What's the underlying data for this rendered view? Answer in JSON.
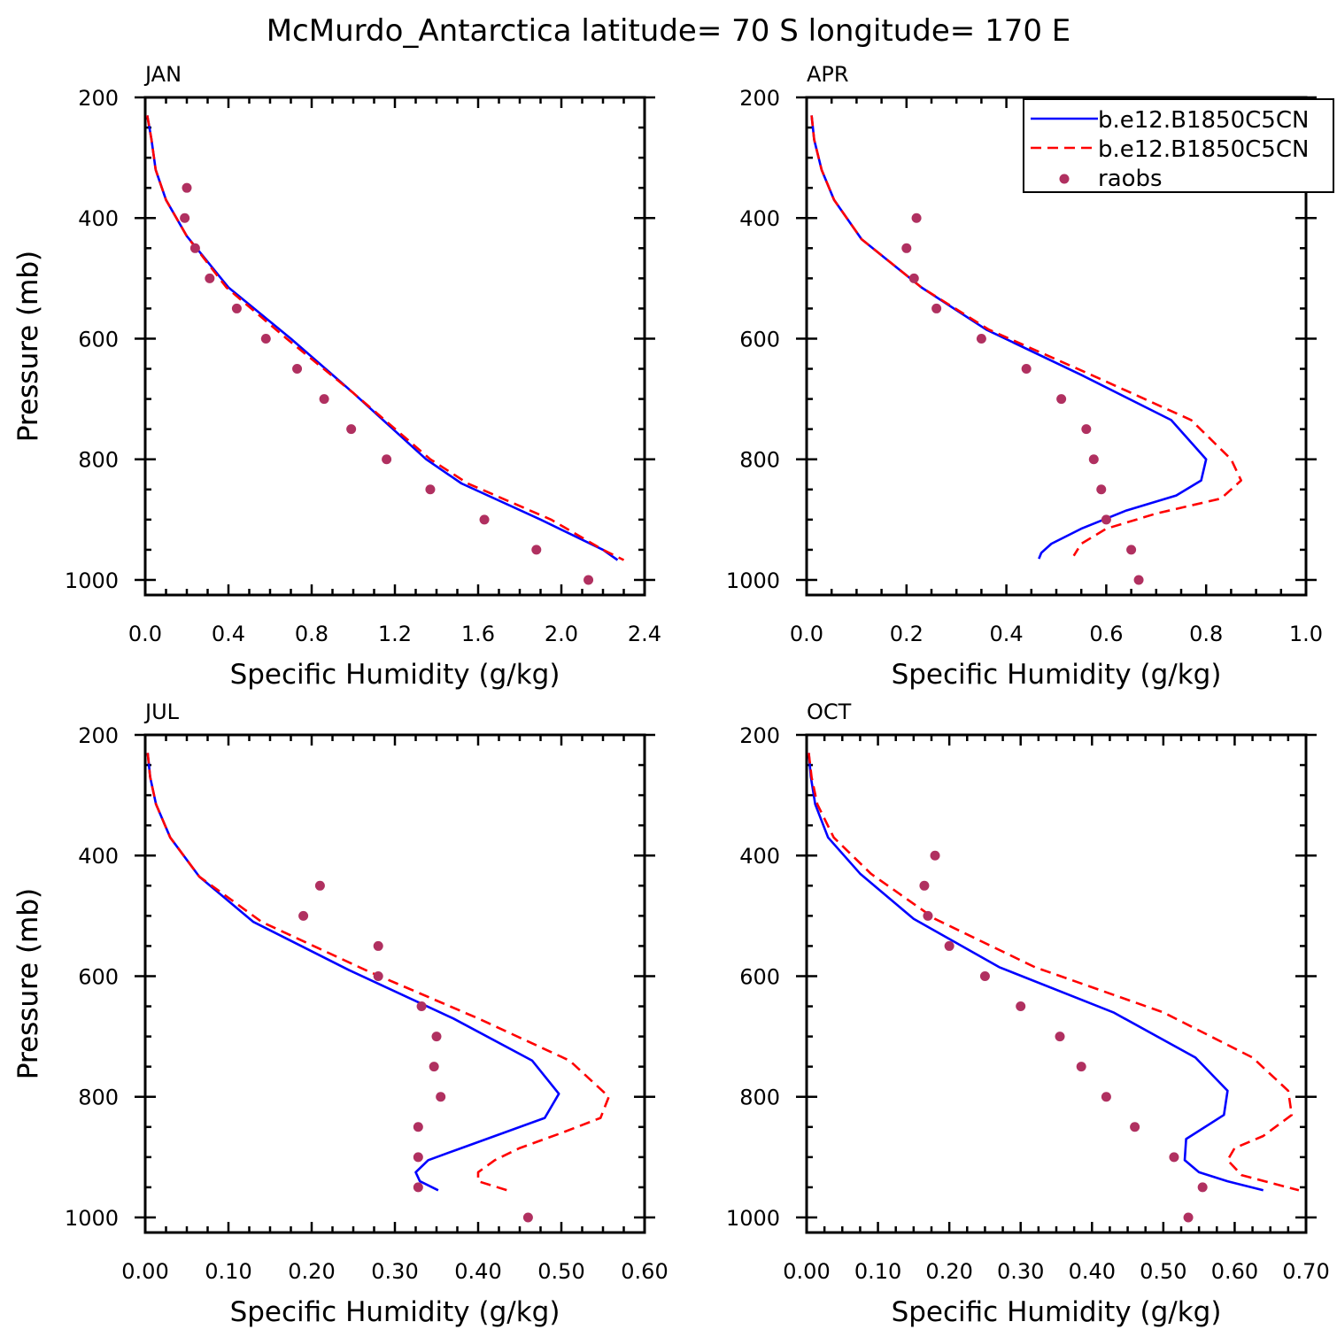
{
  "title": "McMurdo_Antarctica  latitude= 70 S longitude= 170 E",
  "legend": {
    "entries": [
      {
        "label": "b.e12.B1850C5CN",
        "color": "#0000ff",
        "style": "solid"
      },
      {
        "label": "b.e12.B1850C5CN",
        "color": "#ff0000",
        "style": "dashed"
      },
      {
        "label": "raobs",
        "color": "#b03060",
        "style": "marker"
      }
    ]
  },
  "chart_data": [
    {
      "type": "line",
      "title": "JAN",
      "xlabel": "Specific Humidity (g/kg)",
      "ylabel": "Pressure (mb)",
      "xlim": [
        0,
        2.4
      ],
      "ylim": [
        200,
        1025
      ],
      "y_inverted": true,
      "xticks": [
        0.0,
        0.4,
        0.8,
        1.2,
        1.6,
        2.0,
        2.4
      ],
      "xticklabels": [
        "0.0",
        "0.4",
        "0.8",
        "1.2",
        "1.6",
        "2.0",
        "2.4"
      ],
      "yticks": [
        200,
        400,
        600,
        800,
        1000
      ],
      "yticklabels": [
        "200",
        "400",
        "600",
        "800",
        "1000"
      ],
      "series": [
        {
          "name": "b.e12.B1850C5CN",
          "style": "solid",
          "color": "#0000ff",
          "x": [
            0.01,
            0.03,
            0.05,
            0.1,
            0.2,
            0.4,
            0.7,
            1.0,
            1.35,
            1.52,
            1.9,
            2.2,
            2.27
          ],
          "y": [
            230,
            270,
            320,
            370,
            430,
            515,
            600,
            690,
            800,
            840,
            900,
            950,
            967
          ]
        },
        {
          "name": "b.e12.B1850C5CN",
          "style": "dashed",
          "color": "#ff0000",
          "x": [
            0.01,
            0.03,
            0.05,
            0.1,
            0.2,
            0.39,
            0.68,
            1.0,
            1.37,
            1.55,
            1.95,
            2.2,
            2.3
          ],
          "y": [
            230,
            270,
            320,
            370,
            430,
            515,
            600,
            690,
            800,
            840,
            900,
            950,
            967
          ]
        },
        {
          "name": "raobs",
          "style": "marker",
          "color": "#b03060",
          "x": [
            0.2,
            0.19,
            0.24,
            0.31,
            0.44,
            0.58,
            0.73,
            0.86,
            0.99,
            1.16,
            1.37,
            1.63,
            1.88,
            2.13
          ],
          "y": [
            350,
            400,
            450,
            500,
            550,
            600,
            650,
            700,
            750,
            800,
            850,
            900,
            950,
            1000
          ]
        }
      ]
    },
    {
      "type": "line",
      "title": "APR",
      "xlabel": "Specific Humidity (g/kg)",
      "ylabel": "Pressure (mb)",
      "xlim": [
        0,
        1.0
      ],
      "ylim": [
        200,
        1025
      ],
      "y_inverted": true,
      "xticks": [
        0.0,
        0.2,
        0.4,
        0.6,
        0.8,
        1.0
      ],
      "xticklabels": [
        "0.0",
        "0.2",
        "0.4",
        "0.6",
        "0.8",
        "1.0"
      ],
      "yticks": [
        200,
        400,
        600,
        800,
        1000
      ],
      "yticklabels": [
        "200",
        "400",
        "600",
        "800",
        "1000"
      ],
      "series": [
        {
          "name": "b.e12.B1850C5CN",
          "style": "solid",
          "color": "#0000ff",
          "x": [
            0.01,
            0.015,
            0.03,
            0.055,
            0.11,
            0.23,
            0.36,
            0.55,
            0.73,
            0.8,
            0.79,
            0.74,
            0.64,
            0.55,
            0.49,
            0.47,
            0.465
          ],
          "y": [
            230,
            270,
            320,
            370,
            435,
            515,
            585,
            660,
            735,
            800,
            835,
            860,
            885,
            915,
            940,
            955,
            965
          ]
        },
        {
          "name": "b.e12.B1850C5CN",
          "style": "dashed",
          "color": "#ff0000",
          "x": [
            0.01,
            0.015,
            0.03,
            0.055,
            0.11,
            0.23,
            0.365,
            0.57,
            0.77,
            0.85,
            0.87,
            0.83,
            0.7,
            0.6,
            0.55,
            0.535
          ],
          "y": [
            230,
            270,
            320,
            370,
            435,
            515,
            585,
            660,
            735,
            800,
            835,
            865,
            890,
            915,
            940,
            960
          ]
        },
        {
          "name": "raobs",
          "style": "marker",
          "color": "#b03060",
          "x": [
            0.22,
            0.2,
            0.215,
            0.26,
            0.35,
            0.44,
            0.51,
            0.56,
            0.575,
            0.59,
            0.6,
            0.65,
            0.665
          ],
          "y": [
            400,
            450,
            500,
            550,
            600,
            650,
            700,
            750,
            800,
            850,
            900,
            950,
            1000
          ]
        }
      ]
    },
    {
      "type": "line",
      "title": "JUL",
      "xlabel": "Specific Humidity (g/kg)",
      "ylabel": "Pressure (mb)",
      "xlim": [
        0,
        0.6
      ],
      "ylim": [
        200,
        1025
      ],
      "y_inverted": true,
      "xticks": [
        0.0,
        0.1,
        0.2,
        0.3,
        0.4,
        0.5,
        0.6
      ],
      "xticklabels": [
        "0.00",
        "0.10",
        "0.20",
        "0.30",
        "0.40",
        "0.50",
        "0.60"
      ],
      "yticks": [
        200,
        400,
        600,
        800,
        1000
      ],
      "yticklabels": [
        "200",
        "400",
        "600",
        "800",
        "1000"
      ],
      "series": [
        {
          "name": "b.e12.B1850C5CN",
          "style": "solid",
          "color": "#0000ff",
          "x": [
            0.003,
            0.006,
            0.013,
            0.03,
            0.065,
            0.13,
            0.245,
            0.37,
            0.465,
            0.497,
            0.48,
            0.43,
            0.38,
            0.34,
            0.325,
            0.33,
            0.352
          ],
          "y": [
            230,
            270,
            315,
            370,
            435,
            510,
            590,
            670,
            740,
            795,
            835,
            860,
            885,
            905,
            925,
            940,
            955
          ]
        },
        {
          "name": "b.e12.B1850C5CN",
          "style": "dashed",
          "color": "#ff0000",
          "x": [
            0.003,
            0.006,
            0.013,
            0.03,
            0.065,
            0.14,
            0.265,
            0.4,
            0.51,
            0.557,
            0.547,
            0.5,
            0.45,
            0.42,
            0.4,
            0.4,
            0.435
          ],
          "y": [
            230,
            270,
            315,
            370,
            435,
            510,
            590,
            670,
            740,
            800,
            835,
            860,
            885,
            905,
            925,
            940,
            955
          ]
        },
        {
          "name": "raobs",
          "style": "marker",
          "color": "#b03060",
          "x": [
            0.21,
            0.19,
            0.28,
            0.28,
            0.332,
            0.35,
            0.347,
            0.355,
            0.328,
            0.328,
            0.328,
            0.46
          ],
          "y": [
            450,
            500,
            550,
            600,
            650,
            700,
            750,
            800,
            850,
            900,
            950,
            1000
          ]
        }
      ]
    },
    {
      "type": "line",
      "title": "OCT",
      "xlabel": "Specific Humidity (g/kg)",
      "ylabel": "Pressure (mb)",
      "xlim": [
        0,
        0.7
      ],
      "ylim": [
        200,
        1025
      ],
      "y_inverted": true,
      "xticks": [
        0.0,
        0.1,
        0.2,
        0.3,
        0.4,
        0.5,
        0.6,
        0.7
      ],
      "xticklabels": [
        "0.00",
        "0.10",
        "0.20",
        "0.30",
        "0.40",
        "0.50",
        "0.60",
        "0.70"
      ],
      "yticks": [
        200,
        400,
        600,
        800,
        1000
      ],
      "yticklabels": [
        "200",
        "400",
        "600",
        "800",
        "1000"
      ],
      "series": [
        {
          "name": "b.e12.B1850C5CN",
          "style": "solid",
          "color": "#0000ff",
          "x": [
            0.003,
            0.006,
            0.012,
            0.03,
            0.075,
            0.15,
            0.27,
            0.43,
            0.545,
            0.59,
            0.585,
            0.532,
            0.53,
            0.55,
            0.59,
            0.64
          ],
          "y": [
            230,
            270,
            315,
            370,
            430,
            505,
            585,
            660,
            735,
            790,
            830,
            870,
            905,
            925,
            940,
            955
          ]
        },
        {
          "name": "b.e12.B1850C5CN",
          "style": "dashed",
          "color": "#ff0000",
          "x": [
            0.003,
            0.007,
            0.015,
            0.038,
            0.09,
            0.18,
            0.32,
            0.5,
            0.625,
            0.675,
            0.68,
            0.64,
            0.6,
            0.59,
            0.61,
            0.69
          ],
          "y": [
            230,
            270,
            315,
            370,
            430,
            505,
            585,
            660,
            735,
            790,
            830,
            865,
            885,
            905,
            930,
            955
          ]
        },
        {
          "name": "raobs",
          "style": "marker",
          "color": "#b03060",
          "x": [
            0.18,
            0.165,
            0.17,
            0.2,
            0.25,
            0.3,
            0.355,
            0.385,
            0.42,
            0.46,
            0.515,
            0.555,
            0.535
          ],
          "y": [
            400,
            450,
            500,
            550,
            600,
            650,
            700,
            750,
            800,
            850,
            900,
            950,
            1000
          ]
        }
      ]
    }
  ]
}
